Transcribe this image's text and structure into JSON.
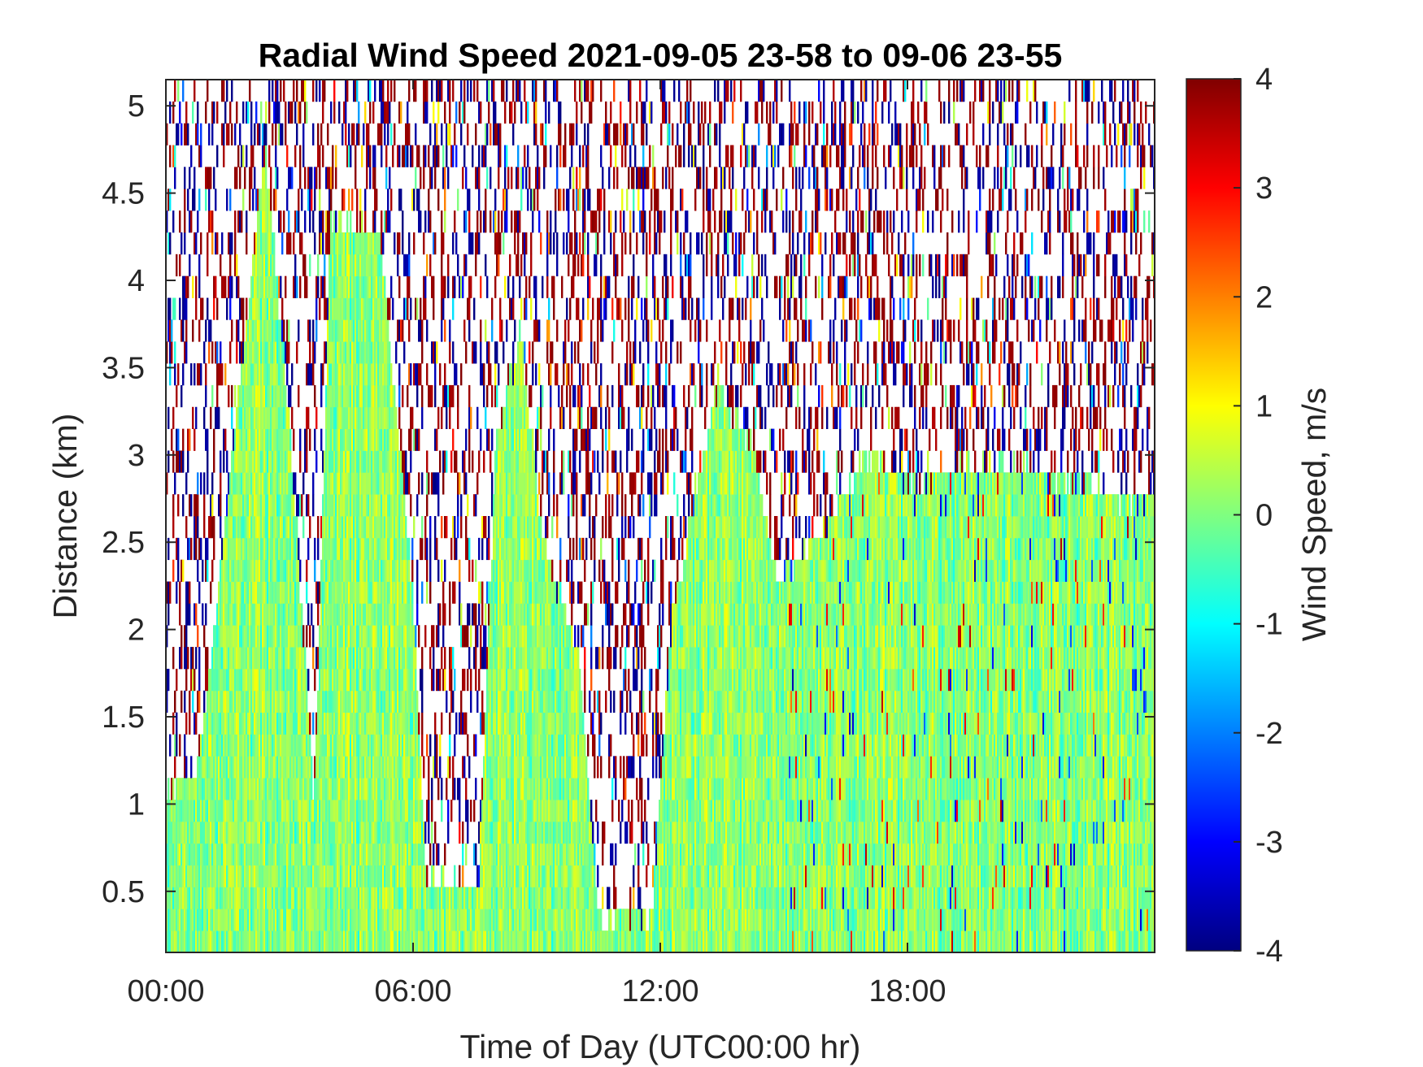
{
  "chart_data": {
    "type": "heatmap",
    "title": "Radial Wind Speed 2021-09-05 23-58 to 09-06 23-55",
    "xlabel": "Time of Day (UTC00:00 hr)",
    "ylabel": "Distance (km)",
    "colorbar_label": "Wind Speed, m/s",
    "xlim_hours": [
      0,
      24
    ],
    "ylim_km": [
      0.15,
      5.15
    ],
    "clim": [
      -4,
      4
    ],
    "colormap": "jet",
    "x_ticks": [
      {
        "value": 0,
        "label": "00:00"
      },
      {
        "value": 6,
        "label": "06:00"
      },
      {
        "value": 12,
        "label": "12:00"
      },
      {
        "value": 18,
        "label": "18:00"
      }
    ],
    "y_ticks": [
      {
        "value": 0.5,
        "label": "0.5"
      },
      {
        "value": 1,
        "label": "1"
      },
      {
        "value": 1.5,
        "label": "1.5"
      },
      {
        "value": 2,
        "label": "2"
      },
      {
        "value": 2.5,
        "label": "2.5"
      },
      {
        "value": 3,
        "label": "3"
      },
      {
        "value": 3.5,
        "label": "3.5"
      },
      {
        "value": 4,
        "label": "4"
      },
      {
        "value": 4.5,
        "label": "4.5"
      },
      {
        "value": 5,
        "label": "5"
      }
    ],
    "colorbar_ticks": [
      {
        "value": 4,
        "label": "4"
      },
      {
        "value": 3,
        "label": "3"
      },
      {
        "value": 2,
        "label": "2"
      },
      {
        "value": 1,
        "label": "1"
      },
      {
        "value": 0,
        "label": "0"
      },
      {
        "value": -1,
        "label": "-1"
      },
      {
        "value": -2,
        "label": "-2"
      },
      {
        "value": -3,
        "label": "-3"
      },
      {
        "value": -4,
        "label": "-4"
      }
    ],
    "valid_data_top_km_by_hour": [
      {
        "hour": 0,
        "km": 1.05
      },
      {
        "hour": 0.8,
        "km": 1.2
      },
      {
        "hour": 1.6,
        "km": 2.95
      },
      {
        "hour": 2.4,
        "km": 4.75
      },
      {
        "hour": 3.0,
        "km": 3.2
      },
      {
        "hour": 3.6,
        "km": 1.0
      },
      {
        "hour": 4.0,
        "km": 4.35
      },
      {
        "hour": 5.2,
        "km": 4.25
      },
      {
        "hour": 6.0,
        "km": 2.2
      },
      {
        "hour": 6.3,
        "km": 0.6
      },
      {
        "hour": 7.6,
        "km": 0.5
      },
      {
        "hour": 8.0,
        "km": 3.05
      },
      {
        "hour": 8.6,
        "km": 3.7
      },
      {
        "hour": 9.2,
        "km": 2.45
      },
      {
        "hour": 10.0,
        "km": 1.9
      },
      {
        "hour": 10.5,
        "km": 0.35
      },
      {
        "hour": 11.8,
        "km": 0.35
      },
      {
        "hour": 12.3,
        "km": 2.1
      },
      {
        "hour": 13.4,
        "km": 3.4
      },
      {
        "hour": 14.3,
        "km": 3.0
      },
      {
        "hour": 14.8,
        "km": 2.3
      },
      {
        "hour": 16.0,
        "km": 2.55
      },
      {
        "hour": 17.0,
        "km": 3.0
      },
      {
        "hour": 18.0,
        "km": 2.85
      },
      {
        "hour": 20.0,
        "km": 2.95
      },
      {
        "hour": 22.0,
        "km": 2.85
      },
      {
        "hour": 23.0,
        "km": 2.75
      },
      {
        "hour": 24.0,
        "km": 2.75
      }
    ],
    "typical_wind_speed_ms": [
      -1,
      1
    ]
  }
}
